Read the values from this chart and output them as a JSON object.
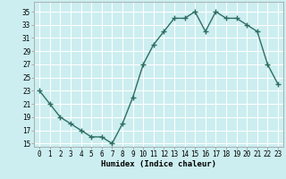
{
  "x": [
    0,
    1,
    2,
    3,
    4,
    5,
    6,
    7,
    8,
    9,
    10,
    11,
    12,
    13,
    14,
    15,
    16,
    17,
    18,
    19,
    20,
    21,
    22,
    23
  ],
  "y": [
    23,
    21,
    19,
    18,
    17,
    16,
    16,
    15,
    18,
    22,
    27,
    30,
    32,
    34,
    34,
    35,
    32,
    35,
    34,
    34,
    33,
    32,
    27,
    24
  ],
  "line_color": "#2d6e63",
  "marker": "+",
  "marker_size": 4,
  "marker_linewidth": 1.0,
  "bg_color": "#cceef0",
  "grid_color": "#ffffff",
  "xlabel": "Humidex (Indice chaleur)",
  "ylim": [
    14.5,
    36.5
  ],
  "xlim": [
    -0.5,
    23.5
  ],
  "yticks": [
    15,
    17,
    19,
    21,
    23,
    25,
    27,
    29,
    31,
    33,
    35
  ],
  "xticks": [
    0,
    1,
    2,
    3,
    4,
    5,
    6,
    7,
    8,
    9,
    10,
    11,
    12,
    13,
    14,
    15,
    16,
    17,
    18,
    19,
    20,
    21,
    22,
    23
  ],
  "tick_fontsize": 5.5,
  "xlabel_fontsize": 6.5,
  "linewidth": 1.0
}
